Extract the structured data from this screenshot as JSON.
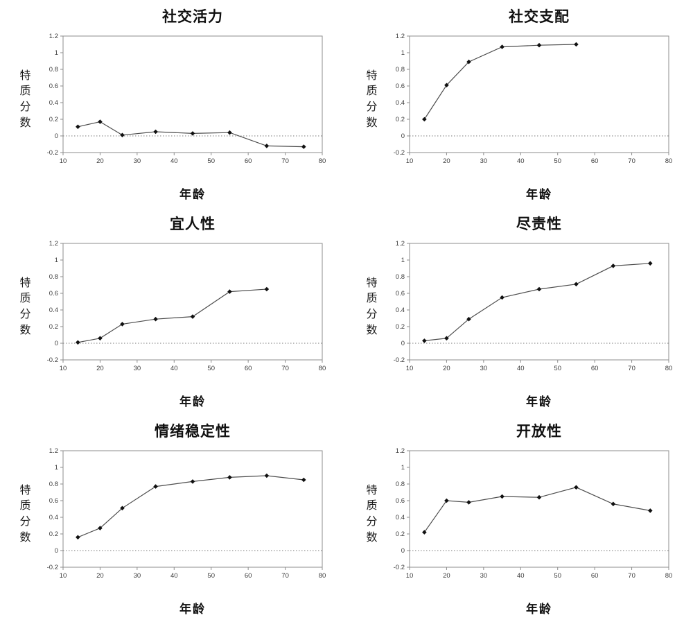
{
  "page": {
    "background": "#ffffff"
  },
  "style": {
    "frame_color": "#8c8c8c",
    "line_color": "#4d4d4d",
    "marker_color": "#111111",
    "tick_label_color": "#3a3a3a",
    "zero_line_color": "#7a7a7a",
    "title_color": "#111111"
  },
  "chart_data": [
    {
      "type": "line",
      "title": "社交活力",
      "xlabel": "年龄",
      "ylabel": "特质分数",
      "x": [
        14,
        20,
        26,
        35,
        45,
        55,
        65,
        75
      ],
      "y": [
        0.11,
        0.17,
        0.01,
        0.05,
        0.03,
        0.04,
        -0.12,
        -0.13
      ],
      "xlim": [
        10,
        80
      ],
      "ylim": [
        -0.2,
        1.2
      ],
      "xticks": [
        10,
        20,
        30,
        40,
        50,
        60,
        70,
        80
      ],
      "yticks": [
        -0.2,
        0,
        0.2,
        0.4,
        0.6,
        0.8,
        1,
        1.2
      ],
      "zero_line": true,
      "grid": false,
      "legend": "none",
      "marker": "diamond"
    },
    {
      "type": "line",
      "title": "社交支配",
      "xlabel": "年龄",
      "ylabel": "特质分数",
      "x": [
        14,
        20,
        26,
        35,
        45,
        55
      ],
      "y": [
        0.2,
        0.61,
        0.89,
        1.07,
        1.09,
        1.1
      ],
      "xlim": [
        10,
        80
      ],
      "ylim": [
        -0.2,
        1.2
      ],
      "xticks": [
        10,
        20,
        30,
        40,
        50,
        60,
        70,
        80
      ],
      "yticks": [
        -0.2,
        0,
        0.2,
        0.4,
        0.6,
        0.8,
        1,
        1.2
      ],
      "zero_line": true,
      "grid": false,
      "legend": "none",
      "marker": "diamond"
    },
    {
      "type": "line",
      "title": "宜人性",
      "xlabel": "年龄",
      "ylabel": "特质分数",
      "x": [
        14,
        20,
        26,
        35,
        45,
        55,
        65
      ],
      "y": [
        0.01,
        0.06,
        0.23,
        0.29,
        0.32,
        0.62,
        0.65
      ],
      "xlim": [
        10,
        80
      ],
      "ylim": [
        -0.2,
        1.2
      ],
      "xticks": [
        10,
        20,
        30,
        40,
        50,
        60,
        70,
        80
      ],
      "yticks": [
        -0.2,
        0,
        0.2,
        0.4,
        0.6,
        0.8,
        1,
        1.2
      ],
      "zero_line": true,
      "grid": false,
      "legend": "none",
      "marker": "diamond"
    },
    {
      "type": "line",
      "title": "尽责性",
      "xlabel": "年龄",
      "ylabel": "特质分数",
      "x": [
        14,
        20,
        26,
        35,
        45,
        55,
        65,
        75
      ],
      "y": [
        0.03,
        0.06,
        0.29,
        0.55,
        0.65,
        0.71,
        0.93,
        0.96
      ],
      "xlim": [
        10,
        80
      ],
      "ylim": [
        -0.2,
        1.2
      ],
      "xticks": [
        10,
        20,
        30,
        40,
        50,
        60,
        70,
        80
      ],
      "yticks": [
        -0.2,
        0,
        0.2,
        0.4,
        0.6,
        0.8,
        1,
        1.2
      ],
      "zero_line": true,
      "grid": false,
      "legend": "none",
      "marker": "diamond"
    },
    {
      "type": "line",
      "title": "情绪稳定性",
      "xlabel": "年龄",
      "ylabel": "特质分数",
      "x": [
        14,
        20,
        26,
        35,
        45,
        55,
        65,
        75
      ],
      "y": [
        0.16,
        0.27,
        0.51,
        0.77,
        0.83,
        0.88,
        0.9,
        0.85
      ],
      "xlim": [
        10,
        80
      ],
      "ylim": [
        -0.2,
        1.2
      ],
      "xticks": [
        10,
        20,
        30,
        40,
        50,
        60,
        70,
        80
      ],
      "yticks": [
        -0.2,
        0,
        0.2,
        0.4,
        0.6,
        0.8,
        1,
        1.2
      ],
      "zero_line": true,
      "grid": false,
      "legend": "none",
      "marker": "diamond"
    },
    {
      "type": "line",
      "title": "开放性",
      "xlabel": "年龄",
      "ylabel": "特质分数",
      "x": [
        14,
        20,
        26,
        35,
        45,
        55,
        65,
        75
      ],
      "y": [
        0.22,
        0.6,
        0.58,
        0.65,
        0.64,
        0.76,
        0.56,
        0.48
      ],
      "xlim": [
        10,
        80
      ],
      "ylim": [
        -0.2,
        1.2
      ],
      "xticks": [
        10,
        20,
        30,
        40,
        50,
        60,
        70,
        80
      ],
      "yticks": [
        -0.2,
        0,
        0.2,
        0.4,
        0.6,
        0.8,
        1,
        1.2
      ],
      "zero_line": true,
      "grid": false,
      "legend": "none",
      "marker": "diamond"
    }
  ]
}
